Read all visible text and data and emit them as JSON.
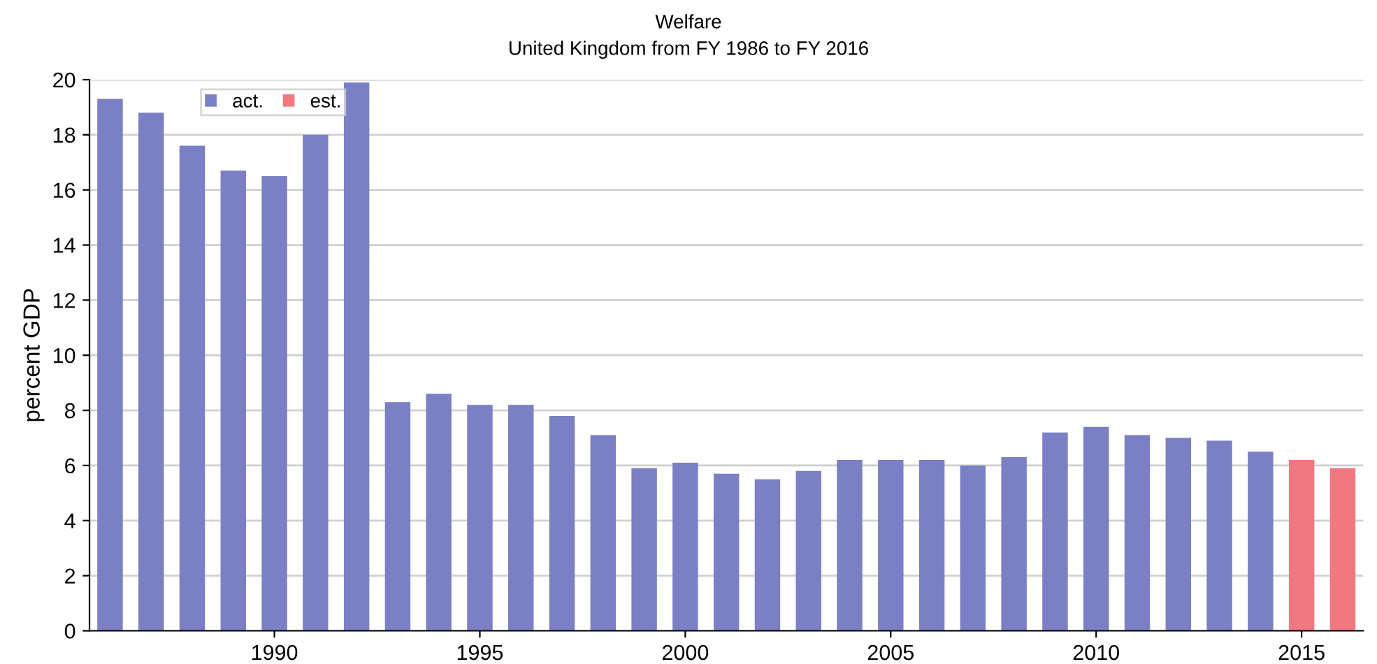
{
  "chart_data": {
    "type": "bar",
    "title": "Welfare",
    "subtitle": "United Kingdom from FY 1986 to FY 2016",
    "ylabel": "percent GDP",
    "series": [
      {
        "name": "act.",
        "color": "#7b7fc4",
        "x": [
          1986,
          1987,
          1988,
          1989,
          1990,
          1991,
          1992,
          1993,
          1994,
          1995,
          1996,
          1997,
          1998,
          1999,
          2000,
          2001,
          2002,
          2003,
          2004,
          2005,
          2006,
          2007,
          2008,
          2009,
          2010,
          2011,
          2012,
          2013,
          2014
        ],
        "values": [
          19.3,
          18.8,
          17.6,
          16.7,
          16.5,
          18.0,
          19.9,
          8.3,
          8.6,
          8.2,
          8.2,
          7.8,
          7.1,
          5.9,
          6.1,
          5.7,
          5.5,
          5.8,
          6.2,
          6.2,
          6.2,
          6.0,
          6.3,
          7.2,
          7.4,
          7.1,
          7.0,
          6.9,
          6.5
        ]
      },
      {
        "name": "est.",
        "color": "#f07880",
        "x": [
          2015,
          2016
        ],
        "values": [
          6.2,
          5.9
        ]
      }
    ],
    "xlim": [
      1985.5,
      2016.5
    ],
    "xticks": [
      1990,
      1995,
      2000,
      2005,
      2010,
      2015
    ],
    "ylim": [
      0,
      20
    ],
    "yticks": [
      0,
      2,
      4,
      6,
      8,
      10,
      12,
      14,
      16,
      18,
      20
    ],
    "grid": "y",
    "legend": "top left"
  }
}
